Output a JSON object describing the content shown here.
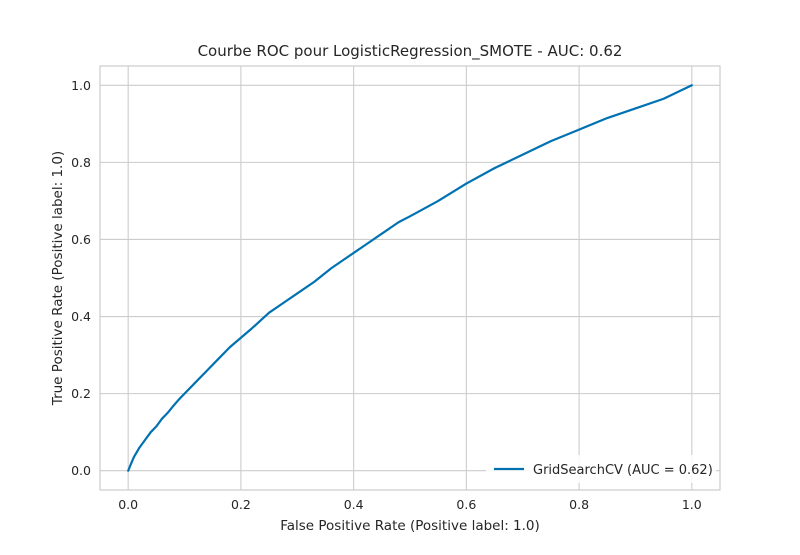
{
  "chart_data": {
    "type": "line",
    "title": "Courbe ROC pour LogisticRegression_SMOTE - AUC: 0.62",
    "xlabel": "False Positive Rate (Positive label: 1.0)",
    "ylabel": "True Positive Rate (Positive label: 1.0)",
    "xlim": [
      -0.05,
      1.05
    ],
    "ylim": [
      -0.05,
      1.05
    ],
    "xticks": [
      0.0,
      0.2,
      0.4,
      0.6,
      0.8,
      1.0
    ],
    "yticks": [
      0.0,
      0.2,
      0.4,
      0.6,
      0.8,
      1.0
    ],
    "xtick_labels": [
      "0.0",
      "0.2",
      "0.4",
      "0.6",
      "0.8",
      "1.0"
    ],
    "ytick_labels": [
      "0.0",
      "0.2",
      "0.4",
      "0.6",
      "0.8",
      "1.0"
    ],
    "grid": true,
    "legend_position": "bottom-right",
    "series": [
      {
        "name": "GridSearchCV (AUC = 0.62)",
        "color": "#0072b2",
        "x": [
          0.0,
          0.005,
          0.01,
          0.02,
          0.03,
          0.04,
          0.05,
          0.06,
          0.07,
          0.08,
          0.09,
          0.1,
          0.12,
          0.14,
          0.16,
          0.18,
          0.2,
          0.22,
          0.25,
          0.28,
          0.3,
          0.33,
          0.36,
          0.38,
          0.4,
          0.42,
          0.45,
          0.48,
          0.5,
          0.55,
          0.6,
          0.65,
          0.7,
          0.75,
          0.8,
          0.85,
          0.9,
          0.95,
          1.0
        ],
        "y": [
          0.0,
          0.018,
          0.035,
          0.06,
          0.08,
          0.1,
          0.115,
          0.135,
          0.15,
          0.168,
          0.185,
          0.2,
          0.23,
          0.26,
          0.29,
          0.32,
          0.345,
          0.37,
          0.41,
          0.44,
          0.46,
          0.49,
          0.525,
          0.545,
          0.565,
          0.585,
          0.615,
          0.645,
          0.66,
          0.7,
          0.745,
          0.785,
          0.82,
          0.855,
          0.885,
          0.915,
          0.94,
          0.965,
          1.0
        ]
      }
    ]
  }
}
